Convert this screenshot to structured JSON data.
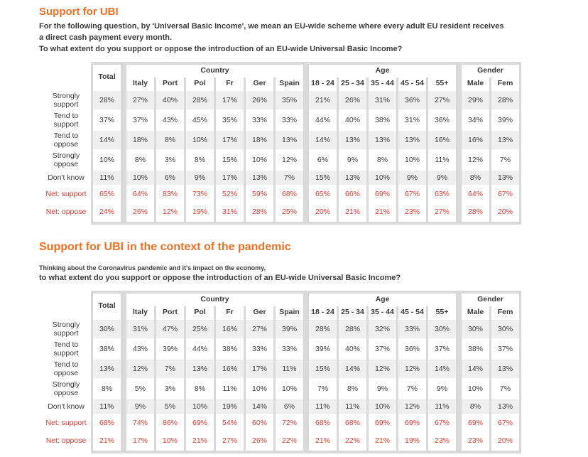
{
  "colors": {
    "accent_orange": "#f36f21",
    "net_red": "#e8382d",
    "frame_gray": "#d9d9d9",
    "row_shade": "#efefef"
  },
  "table_meta": {
    "groups": [
      {
        "label": "",
        "span": 1
      },
      {
        "label": "Country",
        "span": 6
      },
      {
        "label": "Age",
        "span": 5
      },
      {
        "label": "Gender",
        "span": 2
      }
    ],
    "columns": [
      "Total",
      "Italy",
      "Port",
      "Pol",
      "Fr",
      "Ger",
      "Spain",
      "18 - 24",
      "25 - 34",
      "35 - 44",
      "45 - 54",
      "55+",
      "Male",
      "Fem"
    ]
  },
  "sections": [
    {
      "title": "Support for UBI",
      "intro_lines": [
        "For the following question, by 'Universal Basic Income', we mean an EU-wide scheme where every adult EU resident receives",
        "a direct cash payment every month.",
        "To what extent do you support or oppose the introduction of an EU-wide Universal Basic Income?"
      ],
      "table": {
        "rows": [
          {
            "label": "Strongly support",
            "variant": "shaded",
            "values": [
              "28%",
              "27%",
              "40%",
              "28%",
              "17%",
              "26%",
              "35%",
              "21%",
              "26%",
              "31%",
              "36%",
              "27%",
              "29%",
              "28%"
            ]
          },
          {
            "label": "Tend to support",
            "variant": "plain",
            "values": [
              "37%",
              "37%",
              "43%",
              "45%",
              "35%",
              "33%",
              "33%",
              "44%",
              "40%",
              "38%",
              "31%",
              "36%",
              "34%",
              "39%"
            ]
          },
          {
            "label": "Tend to oppose",
            "variant": "shaded",
            "values": [
              "14%",
              "18%",
              "8%",
              "10%",
              "17%",
              "18%",
              "13%",
              "14%",
              "13%",
              "13%",
              "13%",
              "16%",
              "16%",
              "13%"
            ]
          },
          {
            "label": "Strongly oppose",
            "variant": "plain",
            "values": [
              "10%",
              "8%",
              "3%",
              "8%",
              "15%",
              "10%",
              "12%",
              "6%",
              "9%",
              "8%",
              "10%",
              "11%",
              "12%",
              "7%"
            ]
          },
          {
            "label": "Don't know",
            "variant": "shaded short",
            "values": [
              "11%",
              "10%",
              "6%",
              "9%",
              "17%",
              "13%",
              "7%",
              "15%",
              "13%",
              "10%",
              "9%",
              "9%",
              "8%",
              "13%"
            ]
          },
          {
            "label": "Net: support",
            "variant": "net",
            "values": [
              "65%",
              "64%",
              "83%",
              "73%",
              "52%",
              "59%",
              "68%",
              "65%",
              "66%",
              "69%",
              "67%",
              "63%",
              "64%",
              "67%"
            ]
          },
          {
            "label": "Net: oppose",
            "variant": "net",
            "values": [
              "24%",
              "26%",
              "12%",
              "19%",
              "31%",
              "28%",
              "25%",
              "20%",
              "21%",
              "21%",
              "23%",
              "27%",
              "28%",
              "20%"
            ]
          }
        ]
      }
    },
    {
      "title": "Support for UBI in the context of the pandemic",
      "intro_small": "Thinking about the Coronavirus pandemic and it's impact on the economy,",
      "intro_lines": [
        "to what extent do you support or oppose the introduction of an EU-wide Universal Basic Income?"
      ],
      "table": {
        "rows": [
          {
            "label": "Strongly support",
            "variant": "shaded",
            "values": [
              "30%",
              "31%",
              "47%",
              "25%",
              "16%",
              "27%",
              "39%",
              "28%",
              "28%",
              "32%",
              "33%",
              "30%",
              "30%",
              "30%"
            ]
          },
          {
            "label": "Tend to support",
            "variant": "plain",
            "values": [
              "38%",
              "43%",
              "39%",
              "44%",
              "38%",
              "33%",
              "33%",
              "39%",
              "40%",
              "37%",
              "36%",
              "37%",
              "38%",
              "37%"
            ]
          },
          {
            "label": "Tend to oppose",
            "variant": "shaded",
            "values": [
              "13%",
              "12%",
              "7%",
              "13%",
              "16%",
              "17%",
              "11%",
              "15%",
              "14%",
              "12%",
              "12%",
              "14%",
              "14%",
              "13%"
            ]
          },
          {
            "label": "Strongly oppose",
            "variant": "plain",
            "values": [
              "8%",
              "5%",
              "3%",
              "8%",
              "11%",
              "10%",
              "10%",
              "7%",
              "8%",
              "9%",
              "7%",
              "9%",
              "10%",
              "7%"
            ]
          },
          {
            "label": "Don't know",
            "variant": "shaded short",
            "values": [
              "11%",
              "9%",
              "5%",
              "10%",
              "19%",
              "14%",
              "6%",
              "11%",
              "11%",
              "10%",
              "12%",
              "11%",
              "8%",
              "13%"
            ]
          },
          {
            "label": "Net: support",
            "variant": "net",
            "values": [
              "68%",
              "74%",
              "86%",
              "69%",
              "54%",
              "60%",
              "72%",
              "68%",
              "68%",
              "69%",
              "69%",
              "67%",
              "69%",
              "67%"
            ]
          },
          {
            "label": "Net: oppose",
            "variant": "net",
            "values": [
              "21%",
              "17%",
              "10%",
              "21%",
              "27%",
              "26%",
              "22%",
              "21%",
              "22%",
              "21%",
              "19%",
              "23%",
              "23%",
              "20%"
            ]
          }
        ]
      }
    }
  ]
}
